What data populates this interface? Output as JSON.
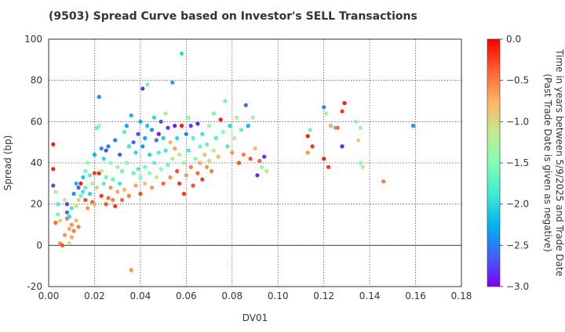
{
  "chart_data": {
    "type": "scatter",
    "title": "(9503)   Spread Curve based on Investor's SELL Transactions",
    "xlabel": "DV01",
    "ylabel": "Spread (bp)",
    "xlim": [
      0.0,
      0.18
    ],
    "ylim": [
      -20,
      100
    ],
    "x_ticks": [
      0.0,
      0.02,
      0.04,
      0.06,
      0.08,
      0.1,
      0.12,
      0.14,
      0.16,
      0.18
    ],
    "x_tick_labels": [
      "0.00",
      "0.02",
      "0.04",
      "0.06",
      "0.08",
      "0.10",
      "0.12",
      "0.14",
      "0.16",
      "0.18"
    ],
    "y_ticks": [
      -20,
      0,
      20,
      40,
      60,
      80,
      100
    ],
    "y_tick_labels": [
      "-20",
      "0",
      "20",
      "40",
      "60",
      "80",
      "100"
    ],
    "grid": true,
    "colorbar": {
      "label_line1": "Time in years between 5/9/2025 and Trade Date",
      "label_line2": "(Past Trade Date is given as negative)",
      "range": [
        -3.0,
        0.0
      ],
      "ticks": [
        0.0,
        -0.5,
        -1.0,
        -1.5,
        -2.0,
        -2.5,
        -3.0
      ],
      "tick_labels": [
        "0.0",
        "−0.5",
        "−1.0",
        "−1.5",
        "−2.0",
        "−2.5",
        "−3.0"
      ],
      "colormap": "rainbow"
    },
    "points": [
      [
        0.002,
        49,
        -0.1
      ],
      [
        0.002,
        37,
        -0.1
      ],
      [
        0.002,
        29,
        -2.7
      ],
      [
        0.003,
        26,
        -1.3
      ],
      [
        0.003,
        11,
        -0.4
      ],
      [
        0.004,
        15,
        -1.6
      ],
      [
        0.004,
        20,
        -1.8
      ],
      [
        0.005,
        1,
        -0.6
      ],
      [
        0.005,
        12,
        -1.0
      ],
      [
        0.006,
        0,
        -0.3
      ],
      [
        0.007,
        22,
        -1.2
      ],
      [
        0.007,
        5,
        -0.6
      ],
      [
        0.008,
        16,
        -2.6
      ],
      [
        0.008,
        20,
        -2.8
      ],
      [
        0.008,
        13,
        -0.5
      ],
      [
        0.009,
        8,
        -0.7
      ],
      [
        0.009,
        14,
        -2.0
      ],
      [
        0.009,
        1,
        -1.2
      ],
      [
        0.01,
        10,
        -0.6
      ],
      [
        0.01,
        4,
        -0.7
      ],
      [
        0.01,
        18,
        -1.9
      ],
      [
        0.011,
        7,
        -0.5
      ],
      [
        0.011,
        25,
        -2.4
      ],
      [
        0.012,
        30,
        -2.2
      ],
      [
        0.012,
        12,
        -0.8
      ],
      [
        0.012,
        19,
        -1.1
      ],
      [
        0.013,
        28,
        -2.6
      ],
      [
        0.013,
        9,
        -0.5
      ],
      [
        0.013,
        22,
        -1.0
      ],
      [
        0.014,
        30,
        -0.1
      ],
      [
        0.014,
        24,
        -1.6
      ],
      [
        0.015,
        26,
        -1.9
      ],
      [
        0.015,
        33,
        -2.1
      ],
      [
        0.016,
        28,
        -1.7
      ],
      [
        0.016,
        36,
        -1.5
      ],
      [
        0.016,
        22,
        -0.3
      ],
      [
        0.017,
        40,
        -1.4
      ],
      [
        0.017,
        18,
        -0.6
      ],
      [
        0.018,
        25,
        -2.0
      ],
      [
        0.018,
        34,
        -1.8
      ],
      [
        0.019,
        21,
        -0.4
      ],
      [
        0.019,
        30,
        -1.3
      ],
      [
        0.02,
        35,
        -0.2
      ],
      [
        0.02,
        44,
        -2.2
      ],
      [
        0.02,
        20,
        -0.7
      ],
      [
        0.021,
        28,
        -0.9
      ],
      [
        0.021,
        57,
        -1.7
      ],
      [
        0.022,
        58,
        -1.4
      ],
      [
        0.022,
        72,
        -2.4
      ],
      [
        0.022,
        35,
        -0.1
      ],
      [
        0.023,
        47,
        -2.4
      ],
      [
        0.023,
        24,
        -0.2
      ],
      [
        0.023,
        36,
        -1.1
      ],
      [
        0.024,
        42,
        -2.0
      ],
      [
        0.024,
        30,
        -1.8
      ],
      [
        0.025,
        46,
        -2.7
      ],
      [
        0.025,
        20,
        -0.3
      ],
      [
        0.025,
        33,
        -1.6
      ],
      [
        0.026,
        48,
        -2.5
      ],
      [
        0.026,
        23,
        -0.4
      ],
      [
        0.027,
        40,
        -1.5
      ],
      [
        0.027,
        28,
        -0.6
      ],
      [
        0.028,
        32,
        -1.7
      ],
      [
        0.028,
        22,
        -0.5
      ],
      [
        0.029,
        51,
        -2.5
      ],
      [
        0.029,
        19,
        -0.2
      ],
      [
        0.03,
        38,
        -1.3
      ],
      [
        0.03,
        26,
        -0.7
      ],
      [
        0.031,
        44,
        -2.6
      ],
      [
        0.031,
        30,
        -1.9
      ],
      [
        0.032,
        36,
        -1.6
      ],
      [
        0.032,
        22,
        -0.4
      ],
      [
        0.033,
        55,
        -1.8
      ],
      [
        0.033,
        27,
        -0.8
      ],
      [
        0.034,
        58,
        -2.3
      ],
      [
        0.034,
        40,
        -1.4
      ],
      [
        0.035,
        48,
        -1.9
      ],
      [
        0.035,
        24,
        -0.5
      ],
      [
        0.036,
        63,
        -2.2
      ],
      [
        0.036,
        -12,
        -0.6
      ],
      [
        0.037,
        35,
        -1.7
      ],
      [
        0.037,
        50,
        -2.6
      ],
      [
        0.038,
        29,
        -0.7
      ],
      [
        0.038,
        45,
        -2.0
      ],
      [
        0.039,
        54,
        -2.7
      ],
      [
        0.039,
        37,
        -1.8
      ],
      [
        0.04,
        33,
        -1.5
      ],
      [
        0.04,
        60,
        -2.2
      ],
      [
        0.04,
        25,
        -0.3
      ],
      [
        0.041,
        76,
        -2.8
      ],
      [
        0.041,
        48,
        -2.4
      ],
      [
        0.042,
        52,
        -2.3
      ],
      [
        0.042,
        38,
        -1.6
      ],
      [
        0.042,
        30,
        -0.9
      ],
      [
        0.043,
        78,
        -1.6
      ],
      [
        0.043,
        58,
        -2.1
      ],
      [
        0.044,
        44,
        -2.0
      ],
      [
        0.044,
        35,
        -1.4
      ],
      [
        0.045,
        56,
        -2.4
      ],
      [
        0.045,
        28,
        -0.6
      ],
      [
        0.046,
        62,
        -2.0
      ],
      [
        0.046,
        40,
        -1.7
      ],
      [
        0.047,
        51,
        -2.5
      ],
      [
        0.047,
        33,
        -1.1
      ],
      [
        0.048,
        54,
        -2.9
      ],
      [
        0.048,
        45,
        -1.8
      ],
      [
        0.049,
        37,
        -1.5
      ],
      [
        0.049,
        60,
        -2.7
      ],
      [
        0.05,
        52,
        -2.1
      ],
      [
        0.05,
        30,
        -0.4
      ],
      [
        0.051,
        46,
        -1.9
      ],
      [
        0.051,
        64,
        -1.3
      ],
      [
        0.052,
        57,
        -2.8
      ],
      [
        0.052,
        39,
        -1.6
      ],
      [
        0.053,
        50,
        -0.8
      ],
      [
        0.053,
        33,
        -0.6
      ],
      [
        0.054,
        79,
        -2.3
      ],
      [
        0.054,
        42,
        -1.2
      ],
      [
        0.055,
        58,
        -2.9
      ],
      [
        0.055,
        47,
        -0.7
      ],
      [
        0.056,
        36,
        -0.3
      ],
      [
        0.056,
        52,
        -2.0
      ],
      [
        0.057,
        30,
        -0.2
      ],
      [
        0.057,
        44,
        -1.1
      ],
      [
        0.058,
        93,
        -2.0
      ],
      [
        0.058,
        58,
        -0.1
      ],
      [
        0.059,
        25,
        -0.2
      ],
      [
        0.059,
        40,
        -1.3
      ],
      [
        0.06,
        54,
        -2.5
      ],
      [
        0.06,
        34,
        -0.6
      ],
      [
        0.061,
        62,
        -1.4
      ],
      [
        0.061,
        46,
        -1.8
      ],
      [
        0.062,
        38,
        -0.5
      ],
      [
        0.062,
        58,
        -2.8
      ],
      [
        0.063,
        29,
        -0.3
      ],
      [
        0.063,
        52,
        -1.7
      ],
      [
        0.064,
        42,
        -1.5
      ],
      [
        0.065,
        35,
        -0.4
      ],
      [
        0.065,
        59,
        -2.9
      ],
      [
        0.066,
        48,
        -1.6
      ],
      [
        0.066,
        40,
        -0.7
      ],
      [
        0.067,
        32,
        -0.2
      ],
      [
        0.067,
        54,
        -1.9
      ],
      [
        0.068,
        44,
        -0.9
      ],
      [
        0.069,
        38,
        -0.6
      ],
      [
        0.069,
        49,
        -1.7
      ],
      [
        0.07,
        41,
        -1.0
      ],
      [
        0.07,
        58,
        -1.4
      ],
      [
        0.071,
        36,
        -0.5
      ],
      [
        0.072,
        46,
        -1.3
      ],
      [
        0.072,
        64,
        -1.6
      ],
      [
        0.073,
        52,
        -1.8
      ],
      [
        0.074,
        43,
        -0.8
      ],
      [
        0.075,
        61,
        -0.1
      ],
      [
        0.076,
        55,
        -1.5
      ],
      [
        0.077,
        70,
        -1.6
      ],
      [
        0.078,
        48,
        -1.8
      ],
      [
        0.079,
        58,
        -2.0
      ],
      [
        0.08,
        45,
        -0.6
      ],
      [
        0.081,
        52,
        -1.1
      ],
      [
        0.082,
        62,
        -1.4
      ],
      [
        0.083,
        40,
        -0.3
      ],
      [
        0.084,
        56,
        -1.7
      ],
      [
        0.085,
        44,
        -0.5
      ],
      [
        0.086,
        68,
        -2.6
      ],
      [
        0.087,
        58,
        -2.2
      ],
      [
        0.088,
        42,
        -0.3
      ],
      [
        0.089,
        62,
        -1.3
      ],
      [
        0.09,
        47,
        -0.8
      ],
      [
        0.091,
        34,
        -2.9
      ],
      [
        0.092,
        41,
        -0.4
      ],
      [
        0.093,
        38,
        -1.4
      ],
      [
        0.094,
        43,
        -2.8
      ],
      [
        0.095,
        36,
        -1.2
      ],
      [
        0.113,
        53,
        -0.1
      ],
      [
        0.113,
        45,
        -0.6
      ],
      [
        0.114,
        56,
        -1.6
      ],
      [
        0.115,
        48,
        -0.2
      ],
      [
        0.12,
        67,
        -2.4
      ],
      [
        0.12,
        42,
        -0.1
      ],
      [
        0.121,
        64,
        -1.2
      ],
      [
        0.122,
        38,
        -0.2
      ],
      [
        0.123,
        58,
        -0.7
      ],
      [
        0.125,
        57,
        -2.0
      ],
      [
        0.126,
        57,
        -0.4
      ],
      [
        0.128,
        48,
        -2.9
      ],
      [
        0.128,
        65,
        -0.2
      ],
      [
        0.129,
        69,
        -0.1
      ],
      [
        0.134,
        60,
        -1.5
      ],
      [
        0.135,
        51,
        -1.0
      ],
      [
        0.136,
        57,
        -1.3
      ],
      [
        0.136,
        40,
        -1.5
      ],
      [
        0.137,
        38,
        -1.2
      ],
      [
        0.146,
        31,
        -0.5
      ],
      [
        0.159,
        58,
        -2.4
      ]
    ]
  }
}
